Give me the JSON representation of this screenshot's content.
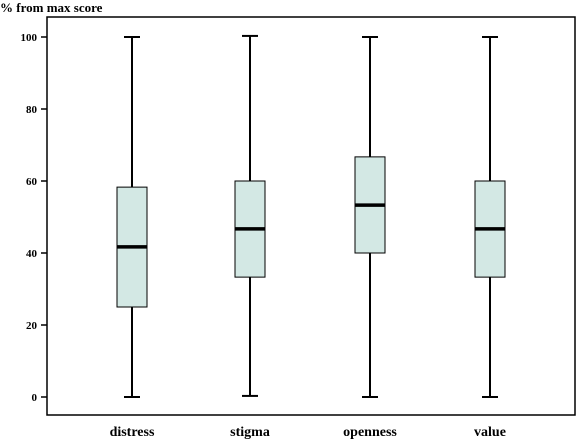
{
  "chart_data": {
    "type": "boxplot",
    "ylabel": "% from max score",
    "xlabel": "",
    "ylim": [
      -5,
      106
    ],
    "yticks": [
      0,
      20,
      40,
      60,
      80,
      100
    ],
    "grid": false,
    "legend": "none",
    "categories": [
      "distress",
      "stigma",
      "openness",
      "value"
    ],
    "boxes": [
      {
        "category": "distress",
        "min": 0,
        "q1": 25,
        "median": 41.7,
        "q3": 58.3,
        "max": 100
      },
      {
        "category": "stigma",
        "min": 0.3,
        "q1": 33.3,
        "median": 46.7,
        "q3": 60,
        "max": 100.3
      },
      {
        "category": "openness",
        "min": 0,
        "q1": 40,
        "median": 53.3,
        "q3": 66.7,
        "max": 100
      },
      {
        "category": "value",
        "min": 0,
        "q1": 33.3,
        "median": 46.7,
        "q3": 60,
        "max": 100
      }
    ],
    "colors": {
      "box_fill": "#d3e8e4",
      "stroke": "#000000",
      "background": "#ffffff"
    }
  }
}
